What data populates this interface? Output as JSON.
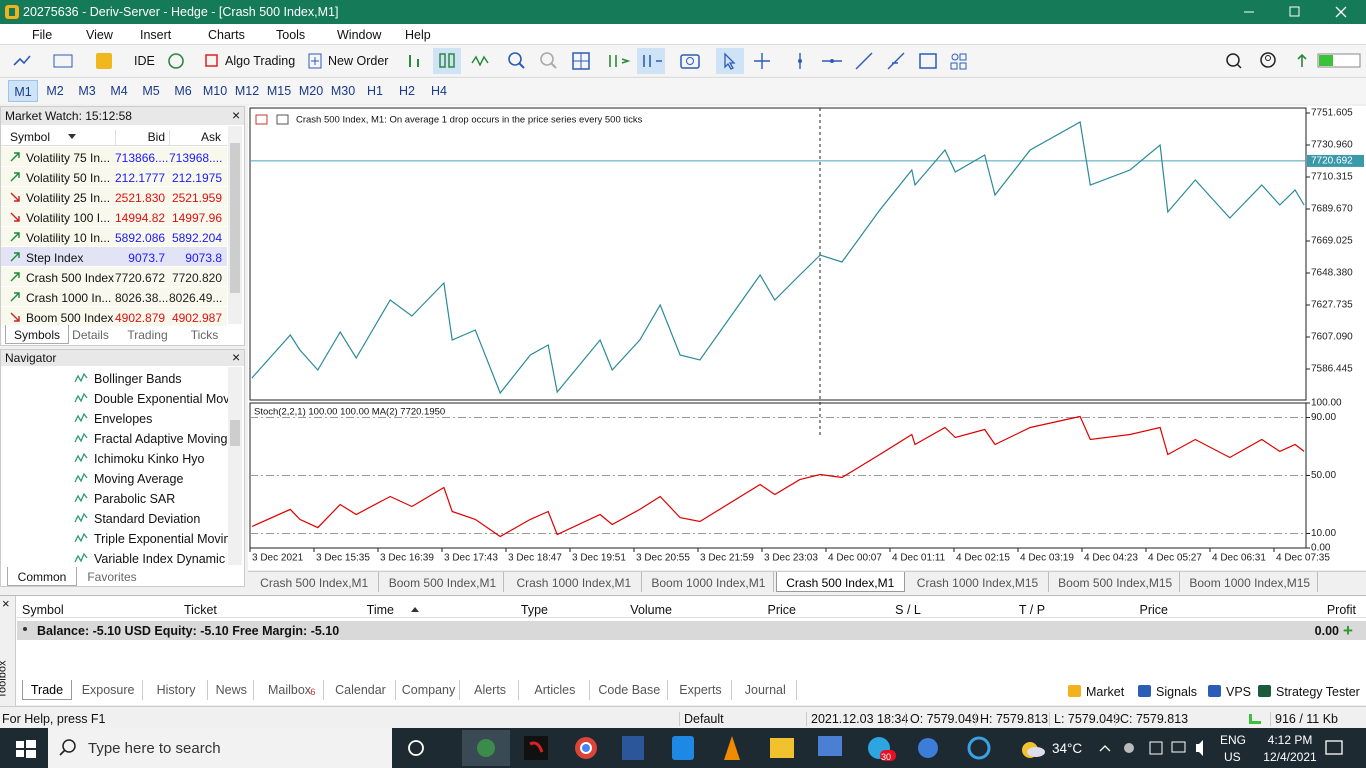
{
  "window": {
    "title": "20275636 - Deriv-Server - Hedge - [Crash 500 Index,M1]"
  },
  "menu": [
    "File",
    "View",
    "Insert",
    "Charts",
    "Tools",
    "Window",
    "Help"
  ],
  "toolbar": {
    "ide": "IDE",
    "algo_trading": "Algo Trading",
    "new_order": "New Order"
  },
  "timeframes": [
    "M1",
    "M2",
    "M3",
    "M4",
    "M5",
    "M6",
    "M10",
    "M12",
    "M15",
    "M20",
    "M30",
    "H1",
    "H2",
    "H4"
  ],
  "active_timeframe": 0,
  "market_watch": {
    "title": "Market Watch: 15:12:58",
    "columns": [
      "Symbol",
      "Bid",
      "Ask"
    ],
    "selected_row": 5,
    "rows": [
      {
        "symbol": "Volatility 75 In...",
        "bid": "713866....",
        "ask": "713968....",
        "trend": "up",
        "color": "#1a1aff"
      },
      {
        "symbol": "Volatility 50 In...",
        "bid": "212.1777",
        "ask": "212.1975",
        "trend": "up",
        "color": "#1a1aff"
      },
      {
        "symbol": "Volatility 25 In...",
        "bid": "2521.830",
        "ask": "2521.959",
        "trend": "down",
        "color": "#e01010"
      },
      {
        "symbol": "Volatility 100 I...",
        "bid": "14994.82",
        "ask": "14997.96",
        "trend": "down",
        "color": "#e01010"
      },
      {
        "symbol": "Volatility 10 In...",
        "bid": "5892.086",
        "ask": "5892.204",
        "trend": "up",
        "color": "#1a1aff"
      },
      {
        "symbol": "Step Index",
        "bid": "9073.7",
        "ask": "9073.8",
        "trend": "up",
        "color": "#1a1aff"
      },
      {
        "symbol": "Crash 500 Index",
        "bid": "7720.672",
        "ask": "7720.820",
        "trend": "up",
        "color": "#202020"
      },
      {
        "symbol": "Crash 1000 In...",
        "bid": "8026.38...",
        "ask": "8026.49...",
        "trend": "up",
        "color": "#202020"
      },
      {
        "symbol": "Boom 500 Index",
        "bid": "4902.879",
        "ask": "4902.987",
        "trend": "down",
        "color": "#e01010"
      }
    ],
    "tabs": [
      "Symbols",
      "Details",
      "Trading",
      "Ticks"
    ]
  },
  "navigator": {
    "title": "Navigator",
    "items": [
      "Bollinger Bands",
      "Double Exponential Movi",
      "Envelopes",
      "Fractal Adaptive Moving",
      "Ichimoku Kinko Hyo",
      "Moving Average",
      "Parabolic SAR",
      "Standard Deviation",
      "Triple Exponential Movin",
      "Variable Index Dynamic A"
    ],
    "tabs": [
      "Common",
      "Favorites"
    ]
  },
  "chart": {
    "header": "Crash 500 Index, M1:  On average 1 drop occurs in the price series every 500 ticks",
    "ylim": [
      7566.45,
      7754.83
    ],
    "yticks": [
      7751.605,
      {
        "value": 7730.96,
        "label": "7730.960"
      },
      7710.315,
      {
        "value": 7689.67,
        "label": "7689.670"
      },
      7669.025,
      {
        "value": 7648.38,
        "label": "7648.380"
      },
      7627.735,
      {
        "value": 7607.09,
        "label": "7607.090"
      },
      7586.445
    ],
    "current_price": 7720.692,
    "xlim": [
      0,
      16.5
    ],
    "xticks": [
      {
        "value": 0,
        "label": "3 Dec 2021"
      },
      {
        "value": 1,
        "label": "3 Dec 15:35"
      },
      {
        "value": 2,
        "label": "3 Dec 16:39"
      },
      {
        "value": 3,
        "label": "3 Dec 17:43"
      },
      {
        "value": 4,
        "label": "3 Dec 18:47"
      },
      {
        "value": 5,
        "label": "3 Dec 19:51"
      },
      {
        "value": 6,
        "label": "3 Dec 20:55"
      },
      {
        "value": 7,
        "label": "3 Dec 21:59"
      },
      {
        "value": 8,
        "label": "3 Dec 23:03"
      },
      {
        "value": 9,
        "label": "4 Dec 00:07"
      },
      {
        "value": 10,
        "label": "4 Dec 01:11"
      },
      {
        "value": 11,
        "label": "4 Dec 02:15"
      },
      {
        "value": 12,
        "label": "4 Dec 03:19"
      },
      {
        "value": 13,
        "label": "4 Dec 04:23"
      },
      {
        "value": 14,
        "label": "4 Dec 05:27"
      },
      {
        "value": 15,
        "label": "4 Dec 06:31"
      },
      {
        "value": 16,
        "label": "4 Dec 07:35"
      }
    ],
    "x": [
      0.03,
      0.63,
      0.78,
      1.06,
      1.41,
      1.66,
      2.19,
      2.53,
      3.03,
      3.16,
      3.52,
      3.91,
      4.38,
      4.66,
      4.8,
      5.47,
      5.66,
      6.09,
      6.41,
      6.72,
      7.03,
      7.97,
      8.2,
      8.59,
      8.91,
      9.25,
      9.84,
      10.34,
      10.39,
      10.86,
      11.02,
      11.48,
      11.64,
      12.19,
      12.97,
      13.13,
      13.75,
      14.22,
      14.34,
      14.77,
      15.31,
      15.81,
      16.09,
      16.33,
      16.47
    ],
    "series": [
      {
        "name": "Crash 500 Index",
        "color": "#2a8a9a",
        "values": [
          7580.64,
          7608.38,
          7598.7,
          7585.8,
          7610.32,
          7593.54,
          7630.96,
          7620.64,
          7641.93,
          7605.16,
          7611.61,
          7570.96,
          7595.48,
          7601.93,
          7571.61,
          7605.16,
          7585.8,
          7605.16,
          7627.74,
          7595.48,
          7592.26,
          7647.09,
          7630.96,
          7647.09,
          7660,
          7655.48,
          7689.03,
          7714.84,
          7705.16,
          7727.74,
          7713.55,
          7724.51,
          7698.7,
          7727.74,
          7745.8,
          7705.16,
          7714.84,
          7730.96,
          7687.74,
          7708.38,
          7683.87,
          7705.16,
          7692.26,
          7701.93,
          7692.26
        ]
      }
    ],
    "stoch": {
      "label": "Stoch(2,2,1) 100.00 100.00 MA(2) 7720.1950",
      "ylim": [
        0,
        100
      ],
      "yticks": [
        {
          "value": 100,
          "label": "100.00"
        },
        {
          "value": 90,
          "label": "90.00"
        },
        {
          "value": 50,
          "label": "50.00"
        },
        {
          "value": 10,
          "label": "10.00"
        },
        {
          "value": 0,
          "label": "0.00"
        }
      ],
      "color": "#e00000",
      "values": [
        14.8,
        26.6,
        19.7,
        14.1,
        30,
        23.1,
        35.5,
        28.6,
        41.7,
        25.2,
        19.7,
        7.9,
        19.7,
        25.2,
        9.3,
        23.1,
        16.2,
        26.6,
        35.5,
        21,
        18.3,
        43.8,
        36.9,
        47.2,
        50.7,
        48.6,
        64.5,
        78.3,
        71.4,
        83.1,
        76.2,
        81.7,
        71.4,
        83.1,
        90.7,
        74.8,
        78.3,
        83.1,
        64.5,
        74.8,
        62.4,
        74.8,
        66.6,
        71.4,
        66.6
      ]
    }
  },
  "chart_tabs": [
    "Crash 500 Index,M1",
    "Boom 500 Index,M1",
    "Crash 1000 Index,M1",
    "Boom 1000 Index,M1",
    "Crash 500 Index,M1",
    "Crash 1000 Index,M15",
    "Boom 500 Index,M15",
    "Boom 1000 Index,M15"
  ],
  "active_chart_tab": 4,
  "toolbox": {
    "label": "Toolbox",
    "columns": [
      "Symbol",
      "Ticket",
      "Time",
      "Type",
      "Volume",
      "Price",
      "S / L",
      "T / P",
      "Price",
      "Profit"
    ],
    "balance": "Balance: -5.10 USD  Equity: -5.10  Free Margin: -5.10",
    "profit": "0.00",
    "tabs": [
      "Trade",
      "Exposure",
      "History",
      "News",
      "Mailbox",
      "Calendar",
      "Company",
      "Alerts",
      "Articles",
      "Code Base",
      "Experts",
      "Journal"
    ],
    "mailbox_count": "6",
    "buttons": [
      "Market",
      "Signals",
      "VPS",
      "Strategy Tester"
    ]
  },
  "status": [
    "For Help, press F1",
    "Default",
    "2021.12.03 18:34",
    "O: 7579.049",
    "H: 7579.813",
    "L: 7579.049",
    "C: 7579.813",
    "916 / 11 Kb"
  ],
  "taskbar": {
    "search": "Type here to search",
    "badge": "30",
    "temperature": "34°C",
    "language": "ENG",
    "region": "US",
    "time": "4:12 PM",
    "date": "12/4/2021"
  }
}
